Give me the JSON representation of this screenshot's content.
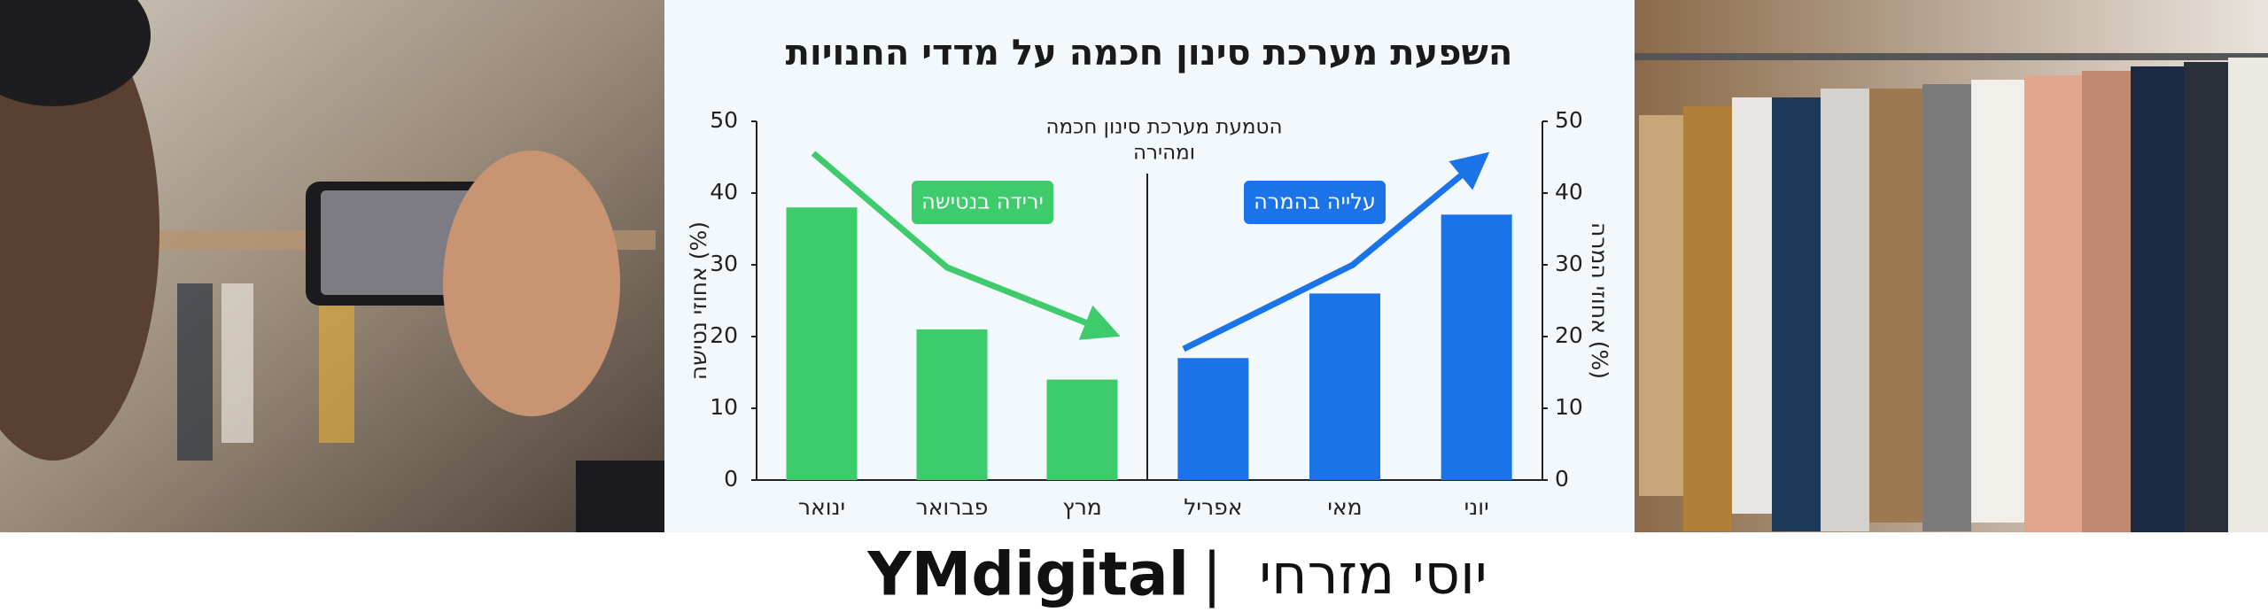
{
  "chart_data": [
    {
      "type": "bar",
      "title": "השפעת מערכת סינון חכמה על מדדי החנויות",
      "categories": [
        "ינואר",
        "פברואר",
        "מרץ"
      ],
      "values": [
        38,
        21,
        14
      ],
      "color": "#3dcb6c",
      "ylabel": "אחוזי נטישה (%)",
      "ylim": [
        0,
        50
      ],
      "yticks": [
        0,
        10,
        20,
        30,
        40,
        50
      ],
      "badge": "ירידה בנטישה",
      "badge_color": "#3dcb6c"
    },
    {
      "type": "bar",
      "categories": [
        "אפריל",
        "מאי",
        "יוני"
      ],
      "values": [
        17,
        26,
        37
      ],
      "color": "#1a73e8",
      "ylabel": "אחוזי המרה (%)",
      "ylim": [
        0,
        50
      ],
      "yticks": [
        0,
        10,
        20,
        30,
        40,
        50
      ],
      "badge": "עלייה בהמרה",
      "badge_color": "#1a73e8"
    }
  ],
  "annotation": [
    "הטמעת מערכת סינון חכמה",
    "ומהירה"
  ],
  "brand": {
    "name": "YMdigital",
    "separator": "|",
    "person": "יוסי מזרחי"
  }
}
